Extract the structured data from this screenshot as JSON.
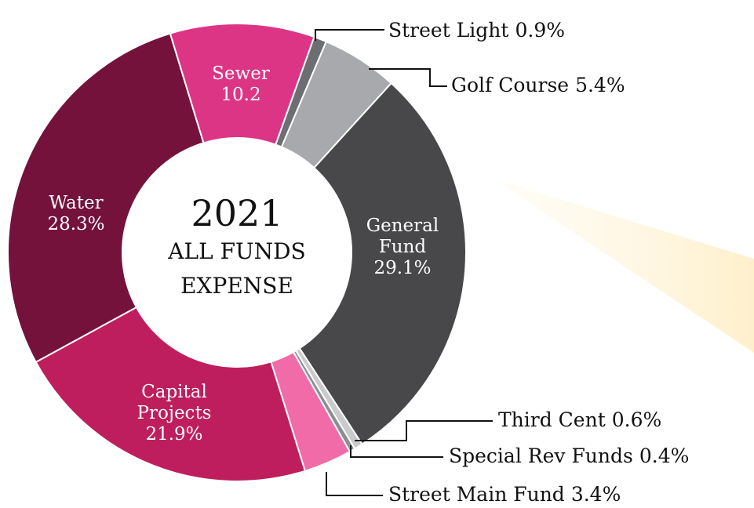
{
  "chart_data": {
    "type": "donut",
    "title": "2021",
    "subtitle": "ALL FUNDS EXPENSE",
    "categories": [
      "Street Light",
      "Golf Course",
      "General Fund",
      "Third Cent",
      "Special Rev Funds",
      "Street Main Fund",
      "Capital Projects",
      "Water",
      "Sewer"
    ],
    "values": [
      0.9,
      5.4,
      29.1,
      0.6,
      0.4,
      3.4,
      21.9,
      28.3,
      10.2
    ],
    "value_labels": [
      "0.9%",
      "5.4%",
      "29.1%",
      "0.6%",
      "0.4%",
      "3.4%",
      "21.9%",
      "28.3%",
      "10.2"
    ],
    "colors": [
      "#6d6e71",
      "#a7a9ac",
      "#48484a",
      "#c9cacc",
      "#8c8d8f",
      "#f06ba8",
      "#be1e5d",
      "#74123c",
      "#dc3586"
    ]
  }
}
